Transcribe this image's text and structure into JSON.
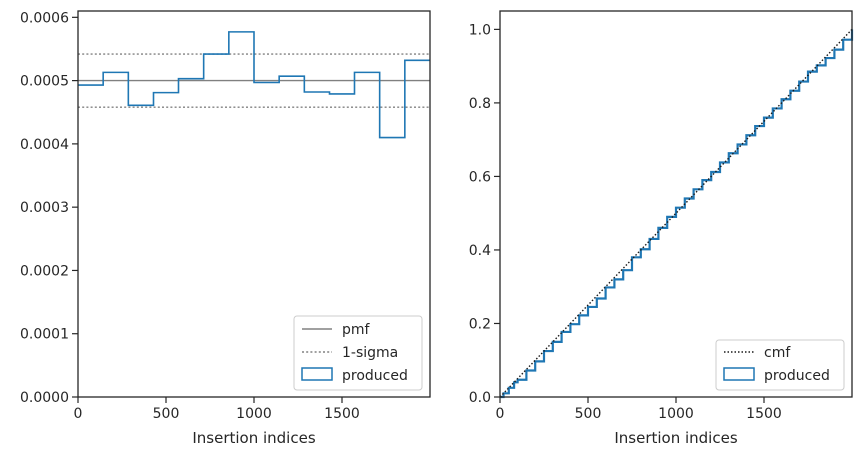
{
  "chart_data": [
    {
      "type": "step-histogram",
      "xlabel": "Insertion indices",
      "ylabel": "",
      "xlim": [
        0,
        2000
      ],
      "ylim": [
        0,
        0.00061
      ],
      "x_ticks": [
        0,
        500,
        1000,
        1500
      ],
      "y_ticks": [
        0,
        0.0001,
        0.0002,
        0.0003,
        0.0004,
        0.0005,
        0.0006
      ],
      "y_tick_labels": [
        "0.0000",
        "0.0001",
        "0.0002",
        "0.0003",
        "0.0004",
        "0.0005",
        "0.0006"
      ],
      "pmf": 0.0005,
      "sigma_band": [
        0.000458,
        0.000542
      ],
      "bin_edges": [
        0,
        143,
        286,
        429,
        571,
        714,
        857,
        1000,
        1143,
        1286,
        1429,
        1571,
        1714,
        1857,
        2000
      ],
      "values": [
        0.000493,
        0.000513,
        0.000461,
        0.000481,
        0.000503,
        0.000542,
        0.000577,
        0.000497,
        0.000507,
        0.000482,
        0.000479,
        0.000513,
        0.00041,
        0.000532
      ],
      "legend": {
        "location": "lower right",
        "entries": [
          {
            "label": "pmf",
            "style": "solid",
            "color": "#808080"
          },
          {
            "label": "1-sigma",
            "style": "dotted",
            "color": "#808080"
          },
          {
            "label": "produced",
            "style": "step",
            "color": "#1f77b4"
          }
        ]
      }
    },
    {
      "type": "line",
      "xlabel": "Insertion indices",
      "ylabel": "",
      "xlim": [
        0,
        2000
      ],
      "ylim": [
        0,
        1.05
      ],
      "x_ticks": [
        0,
        500,
        1000,
        1500
      ],
      "y_ticks": [
        0,
        0.2,
        0.4,
        0.6,
        0.8,
        1.0
      ],
      "y_tick_labels": [
        "0.0",
        "0.2",
        "0.4",
        "0.6",
        "0.8",
        "1.0"
      ],
      "cmf": {
        "x": [
          0,
          2000
        ],
        "y": [
          0,
          1.0
        ]
      },
      "produced": {
        "x": [
          0,
          20,
          50,
          80,
          100,
          150,
          200,
          250,
          300,
          350,
          400,
          450,
          500,
          550,
          600,
          650,
          700,
          750,
          800,
          850,
          900,
          950,
          1000,
          1050,
          1100,
          1150,
          1200,
          1250,
          1300,
          1350,
          1400,
          1450,
          1500,
          1550,
          1600,
          1650,
          1700,
          1750,
          1800,
          1850,
          1900,
          1950,
          2000
        ],
        "y": [
          0,
          0.01,
          0.025,
          0.04,
          0.047,
          0.072,
          0.097,
          0.125,
          0.15,
          0.177,
          0.198,
          0.222,
          0.245,
          0.268,
          0.298,
          0.32,
          0.345,
          0.38,
          0.402,
          0.43,
          0.46,
          0.49,
          0.515,
          0.54,
          0.565,
          0.59,
          0.612,
          0.638,
          0.663,
          0.687,
          0.712,
          0.737,
          0.76,
          0.785,
          0.81,
          0.833,
          0.858,
          0.885,
          0.902,
          0.922,
          0.945,
          0.972,
          1.0
        ]
      },
      "legend": {
        "location": "lower right",
        "entries": [
          {
            "label": "cmf",
            "style": "dotted",
            "color": "#1a1a1a"
          },
          {
            "label": "produced",
            "style": "step",
            "color": "#1f77b4"
          }
        ]
      }
    }
  ]
}
